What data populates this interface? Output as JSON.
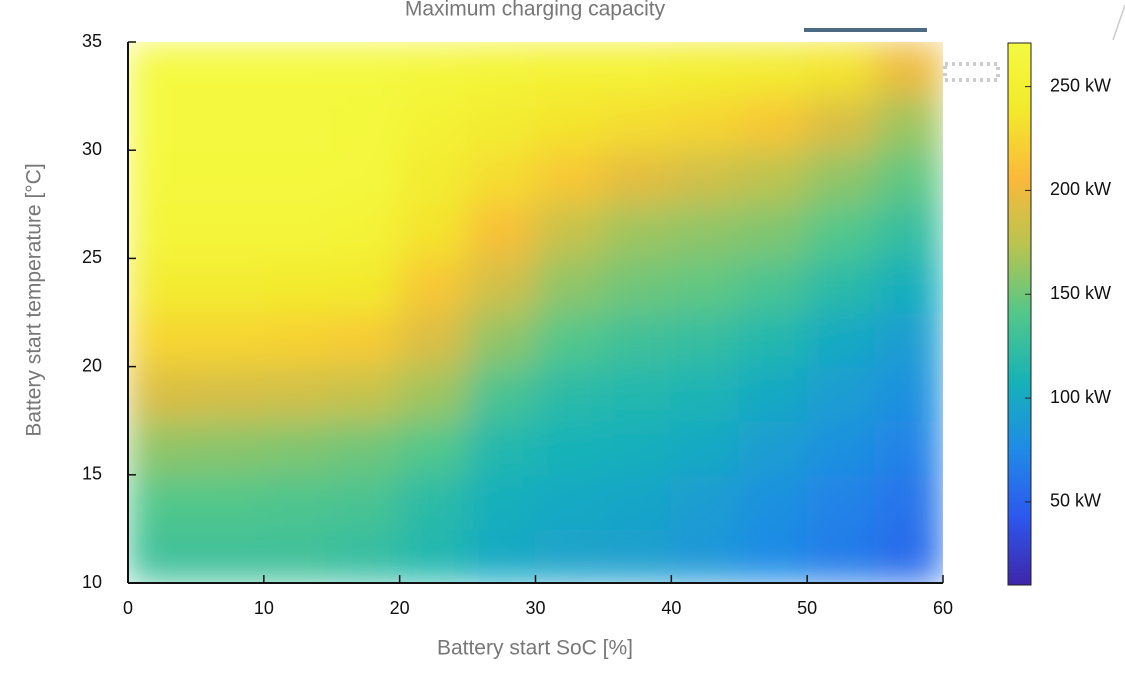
{
  "chart_data": {
    "type": "heatmap",
    "title": "Maximum charging capacity",
    "xlabel": "Battery start SoC [%]",
    "ylabel": "Battery start temperature [°C]",
    "x": [
      2.5,
      7.5,
      12.5,
      17.5,
      22.5,
      27.5,
      32.5,
      37.5,
      42.5,
      47.5,
      52.5,
      57.5
    ],
    "y": [
      11.25,
      13.75,
      16.25,
      18.75,
      21.25,
      23.75,
      26.25,
      28.75,
      31.25,
      33.75
    ],
    "z": [
      [
        130,
        130,
        130,
        125,
        115,
        100,
        95,
        92,
        85,
        75,
        65,
        55
      ],
      [
        140,
        140,
        138,
        135,
        120,
        105,
        100,
        97,
        90,
        80,
        70,
        60
      ],
      [
        160,
        158,
        155,
        150,
        140,
        115,
        108,
        105,
        100,
        90,
        80,
        70
      ],
      [
        190,
        188,
        185,
        180,
        165,
        135,
        120,
        115,
        110,
        100,
        90,
        80
      ],
      [
        225,
        225,
        222,
        218,
        190,
        160,
        140,
        130,
        125,
        115,
        100,
        90
      ],
      [
        245,
        245,
        243,
        240,
        215,
        185,
        160,
        150,
        145,
        135,
        120,
        105
      ],
      [
        262,
        262,
        262,
        258,
        235,
        210,
        180,
        165,
        160,
        155,
        140,
        125
      ],
      [
        268,
        268,
        268,
        265,
        245,
        230,
        215,
        195,
        185,
        175,
        160,
        145
      ],
      [
        270,
        270,
        270,
        268,
        255,
        245,
        235,
        230,
        225,
        215,
        190,
        165
      ],
      [
        270,
        270,
        270,
        270,
        265,
        260,
        255,
        255,
        250,
        245,
        235,
        200
      ]
    ],
    "xlim": [
      0,
      60
    ],
    "xticks": [
      0,
      10,
      20,
      30,
      40,
      50,
      60
    ],
    "ylim": [
      10,
      35
    ],
    "yticks": [
      10,
      15,
      20,
      25,
      30,
      35
    ],
    "clim": [
      10,
      271
    ],
    "cticks": [
      {
        "value": 50,
        "label": "50 kW"
      },
      {
        "value": 100,
        "label": "100 kW"
      },
      {
        "value": 150,
        "label": "150 kW"
      },
      {
        "value": 200,
        "label": "200 kW"
      },
      {
        "value": 250,
        "label": "250 kW"
      }
    ],
    "colormap": [
      "#3e26a8",
      "#2d57ee",
      "#1f8be6",
      "#16b2b8",
      "#52c78a",
      "#b8c450",
      "#fab93a",
      "#f3e92c",
      "#f4fa40"
    ]
  }
}
